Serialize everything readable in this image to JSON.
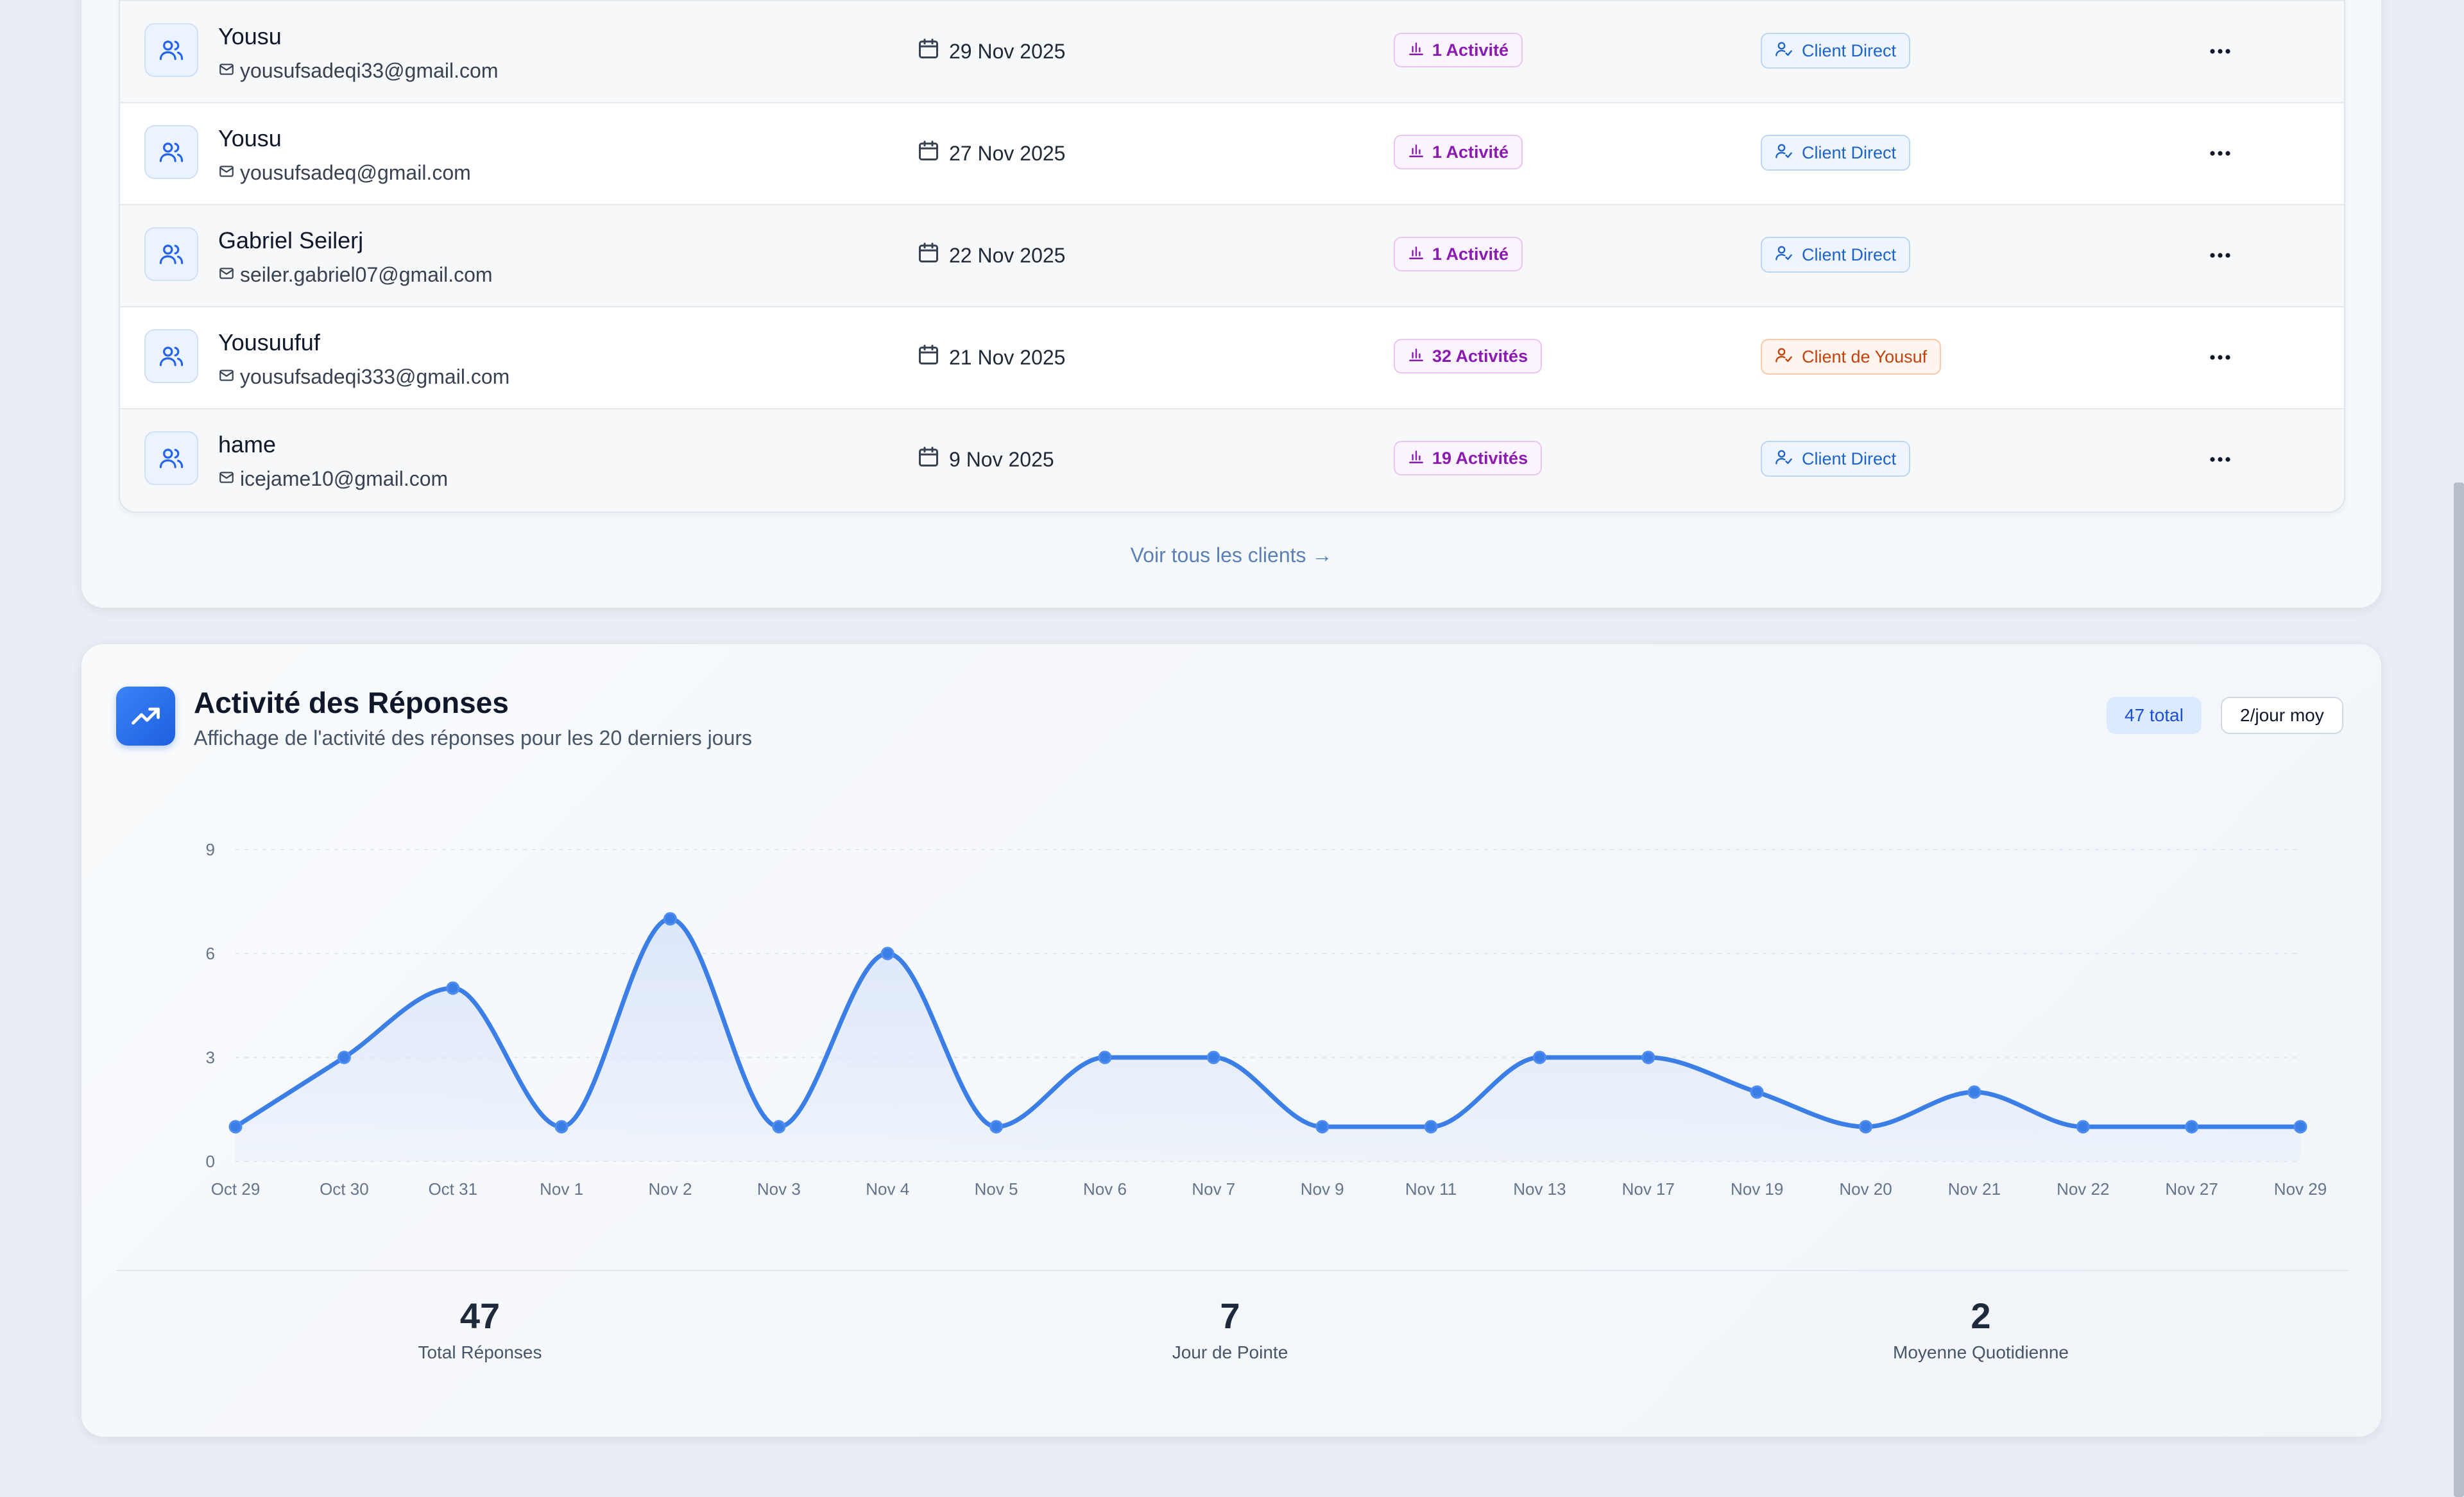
{
  "clients": {
    "rows": [
      {
        "name": "Yousu",
        "email": "yousufsadeqi33@gmail.com",
        "date": "29 Nov 2025",
        "activity": "1 Activité",
        "client_type": "Client Direct",
        "type_style": "blue"
      },
      {
        "name": "Yousu",
        "email": "yousufsadeq@gmail.com",
        "date": "27 Nov 2025",
        "activity": "1 Activité",
        "client_type": "Client Direct",
        "type_style": "blue"
      },
      {
        "name": "Gabriel Seilerj",
        "email": "seiler.gabriel07@gmail.com",
        "date": "22 Nov 2025",
        "activity": "1 Activité",
        "client_type": "Client Direct",
        "type_style": "blue"
      },
      {
        "name": "Yousuufuf",
        "email": "yousufsadeqi333@gmail.com",
        "date": "21 Nov 2025",
        "activity": "32 Activités",
        "client_type": "Client de Yousuf",
        "type_style": "orange"
      },
      {
        "name": "hame",
        "email": "icejame10@gmail.com",
        "date": "9 Nov 2025",
        "activity": "19 Activités",
        "client_type": "Client Direct",
        "type_style": "blue"
      }
    ],
    "view_all": "Voir tous les clients →"
  },
  "activity": {
    "title": "Activité des Réponses",
    "subtitle": "Affichage de l'activité des réponses pour les 20 derniers jours",
    "total_pill": "47 total",
    "avg_pill": "2/jour moy",
    "stats": [
      {
        "value": "47",
        "label": "Total Réponses"
      },
      {
        "value": "7",
        "label": "Jour de Pointe"
      },
      {
        "value": "2",
        "label": "Moyenne Quotidienne"
      }
    ]
  },
  "chart_data": {
    "type": "area",
    "title": "",
    "xlabel": "",
    "ylabel": "",
    "x": [
      "Oct 29",
      "Oct 30",
      "Oct 31",
      "Nov 1",
      "Nov 2",
      "Nov 3",
      "Nov 4",
      "Nov 5",
      "Nov 6",
      "Nov 7",
      "Nov 9",
      "Nov 11",
      "Nov 13",
      "Nov 17",
      "Nov 19",
      "Nov 20",
      "Nov 21",
      "Nov 22",
      "Nov 27",
      "Nov 29"
    ],
    "series": [
      {
        "values": [
          1,
          3,
          5,
          1,
          7,
          1,
          6,
          1,
          3,
          3,
          1,
          1,
          3,
          3,
          2,
          1,
          2,
          1,
          1,
          1
        ]
      }
    ],
    "ylim": [
      0,
      9
    ],
    "yticks": [
      0,
      3,
      6,
      9
    ],
    "grid": true,
    "line_color": "#3b7fe6",
    "fill_color": "#dbe6fb"
  },
  "colors": {
    "accent": "#2563eb",
    "activity_badge": "#8a1bb0",
    "client_direct": "#1e63c7",
    "client_de": "#c2410c"
  }
}
